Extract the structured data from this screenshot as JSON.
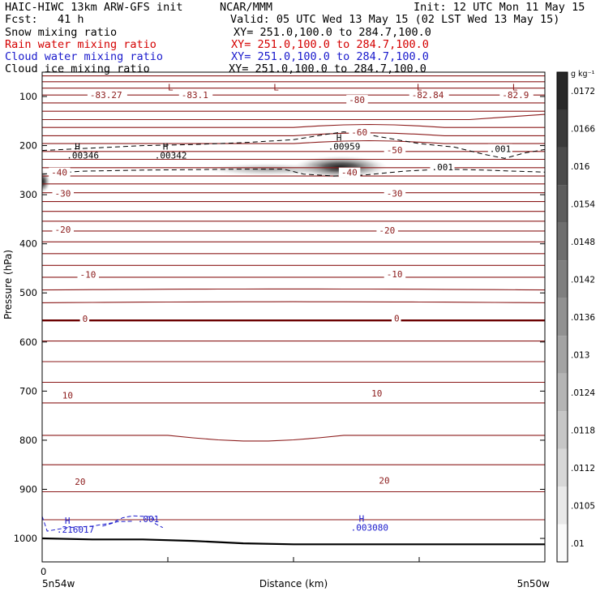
{
  "header": {
    "model": "HAIC-HIWC 13km ARW-GFS init",
    "org": "NCAR/MMM",
    "init": "Init: 12 UTC Mon 11 May 15",
    "fcst": "Fcst:   41 h",
    "valid": "Valid: 05 UTC Wed 13 May 15 (02 LST Wed 13 May 15)",
    "fields": [
      {
        "name": "Snow mixing ratio",
        "xy": "XY= 251.0,100.0 to 284.7,100.0",
        "color": "#000000"
      },
      {
        "name": "Rain water mixing ratio",
        "xy": "XY= 251.0,100.0 to 284.7,100.0",
        "color": "#d40000"
      },
      {
        "name": "Cloud water mixing ratio",
        "xy": "XY= 251.0,100.0 to 284.7,100.0",
        "color": "#1a1acc"
      },
      {
        "name": "Cloud ice mixing ratio",
        "xy": "XY= 251.0,100.0 to 284.7,100.0",
        "color": "#000000"
      }
    ]
  },
  "colors": {
    "temperature": "#8b1a1a",
    "cloud_water": "#1a1acc",
    "ice": "#000000",
    "freezing": "#6b0000"
  },
  "chart_data": {
    "type": "heatmap",
    "ylabel": "Pressure (hPa)",
    "xlabel": "Distance (km)",
    "x_tick_labels": [
      "0"
    ],
    "x_end_labels": [
      "5n54w",
      "5n50w"
    ],
    "yticks": [
      100,
      200,
      300,
      400,
      500,
      600,
      700,
      800,
      900,
      1000
    ],
    "ylim": [
      1050,
      50
    ],
    "xlim": [
      0,
      100
    ],
    "colorbar": {
      "unit": "g kg⁻¹",
      "values": [
        ".01",
        ".0105",
        ".0112",
        ".0118",
        ".0124",
        ".013",
        ".0136",
        ".0142",
        ".0148",
        ".0154",
        ".016",
        ".0166",
        ".0172"
      ]
    },
    "snow_max": {
      "label": ".00959",
      "x": 57.3,
      "p": 200
    },
    "temperature_labels": [
      {
        "text": "-83.27",
        "x": 9.5,
        "p": 100
      },
      {
        "text": "-83.1",
        "x": 27.7,
        "p": 100
      },
      {
        "text": "-80",
        "x": 61.0,
        "p": 110
      },
      {
        "text": "-82.84",
        "x": 73.5,
        "p": 100
      },
      {
        "text": "-82.9",
        "x": 91.5,
        "p": 100
      },
      {
        "text": "-60",
        "x": 61.5,
        "p": 176
      },
      {
        "text": "-50",
        "x": 68.5,
        "p": 212
      },
      {
        "text": "-40",
        "x": 1.8,
        "p": 258
      },
      {
        "text": "-40",
        "x": 59.5,
        "p": 258
      },
      {
        "text": "-30",
        "x": 2.5,
        "p": 301
      },
      {
        "text": "-30",
        "x": 68.5,
        "p": 301
      },
      {
        "text": "-20",
        "x": 2.5,
        "p": 374
      },
      {
        "text": "-20",
        "x": 67.0,
        "p": 376
      },
      {
        "text": "-10",
        "x": 7.5,
        "p": 466
      },
      {
        "text": "-10",
        "x": 68.5,
        "p": 465
      },
      {
        "text": "0",
        "x": 8.0,
        "p": 556
      },
      {
        "text": "0",
        "x": 70.0,
        "p": 555
      },
      {
        "text": "10",
        "x": 4.0,
        "p": 712
      },
      {
        "text": "10",
        "x": 65.5,
        "p": 708
      },
      {
        "text": "20",
        "x": 6.5,
        "p": 888
      },
      {
        "text": "20",
        "x": 67.0,
        "p": 885
      }
    ],
    "highs_lows": [
      {
        "mark": "L",
        "text": "",
        "x": 25.0,
        "p": 88,
        "color": "temperature"
      },
      {
        "mark": "L",
        "text": "",
        "x": 46.0,
        "p": 88,
        "color": "temperature"
      },
      {
        "mark": "L",
        "text": "",
        "x": 74.5,
        "p": 88,
        "color": "temperature"
      },
      {
        "mark": "L",
        "text": "",
        "x": 93.5,
        "p": 88,
        "color": "temperature"
      },
      {
        "mark": "H",
        "text": ".00346",
        "x": 6.5,
        "p": 208,
        "color": "ice"
      },
      {
        "mark": "H",
        "text": ".00342",
        "x": 24.0,
        "p": 208,
        "color": "ice"
      },
      {
        "mark": "H",
        "text": ".00959",
        "x": 58.5,
        "p": 190,
        "color": "ice"
      },
      {
        "mark": "H",
        "text": ".216017",
        "x": 4.5,
        "p": 970,
        "color": "cloud_water"
      },
      {
        "mark": "H",
        "text": ".003080",
        "x": 63.0,
        "p": 966,
        "color": "cloud_water"
      }
    ],
    "ice_contour_labels": [
      {
        "text": ".001",
        "x": 89.0,
        "p": 210
      },
      {
        "text": ".001",
        "x": 77.5,
        "p": 247
      }
    ],
    "cloud_water_contour_labels": [
      {
        "text": ".001",
        "x": 19.0,
        "p": 964
      }
    ]
  }
}
